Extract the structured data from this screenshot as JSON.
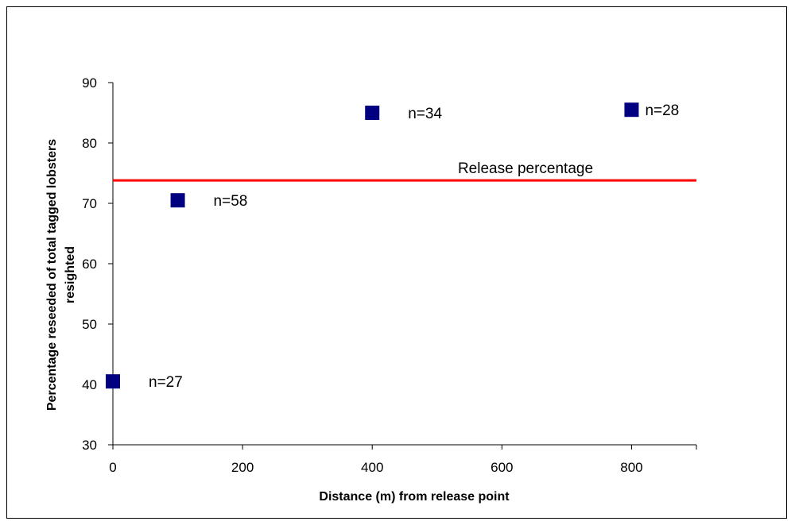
{
  "chart_data": {
    "type": "scatter",
    "xlabel": "Distance (m)  from release point",
    "ylabel_lines": [
      "Percentage reseeded of total tagged lobsters",
      "resighted"
    ],
    "xlim": [
      0,
      900
    ],
    "ylim": [
      30,
      90
    ],
    "x_ticks": [
      0,
      200,
      400,
      600,
      800
    ],
    "y_ticks": [
      30,
      40,
      50,
      60,
      70,
      80,
      90
    ],
    "grid": false,
    "marker_color": "#000080",
    "points": [
      {
        "x": 0,
        "y": 40.5,
        "label": "n=27"
      },
      {
        "x": 100,
        "y": 70.5,
        "label": "n=58"
      },
      {
        "x": 400,
        "y": 85,
        "label": "n=34"
      },
      {
        "x": 800,
        "y": 85.5,
        "label": "n=28"
      }
    ],
    "reference_line": {
      "y": 73.8,
      "label": "Release percentage",
      "color": "#ff0000"
    }
  }
}
